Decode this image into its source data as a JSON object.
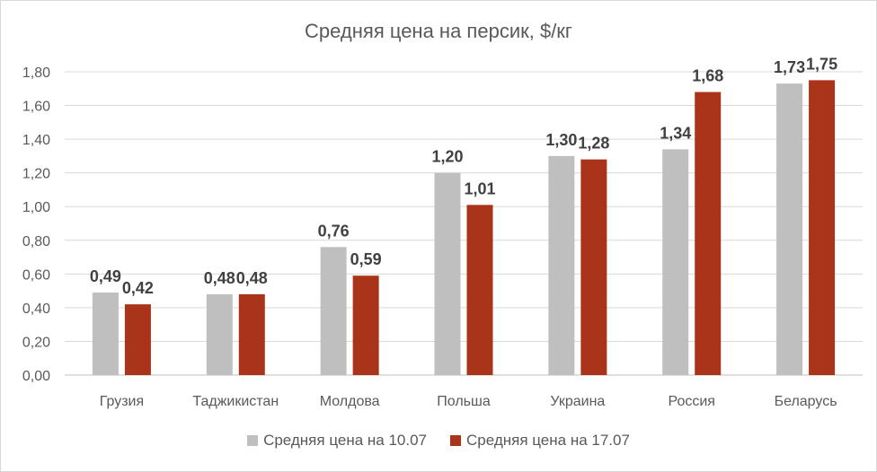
{
  "chart_data": {
    "type": "bar",
    "title": "Средняя цена на персик, $/кг",
    "categories": [
      "Грузия",
      "Таджикистан",
      "Молдова",
      "Польша",
      "Украина",
      "Россия",
      "Беларусь"
    ],
    "series": [
      {
        "name": "Средняя цена на 10.07",
        "color": "#BFBFBF",
        "values": [
          0.49,
          0.48,
          0.76,
          1.2,
          1.3,
          1.34,
          1.73
        ],
        "labels": [
          "0,49",
          "0,48",
          "0,76",
          "1,20",
          "1,30",
          "1,34",
          "1,73"
        ]
      },
      {
        "name": "Средняя цена на 17.07",
        "color": "#A9341A",
        "values": [
          0.42,
          0.48,
          0.59,
          1.01,
          1.28,
          1.68,
          1.75
        ],
        "labels": [
          "0,42",
          "0,48",
          "0,59",
          "1,01",
          "1,28",
          "1,68",
          "1,75"
        ]
      }
    ],
    "ylim": [
      0,
      1.8
    ],
    "yticks": [
      "0,00",
      "0,20",
      "0,40",
      "0,60",
      "0,80",
      "1,00",
      "1,20",
      "1,40",
      "1,60",
      "1,80"
    ],
    "grid": true,
    "legend_position": "bottom"
  }
}
